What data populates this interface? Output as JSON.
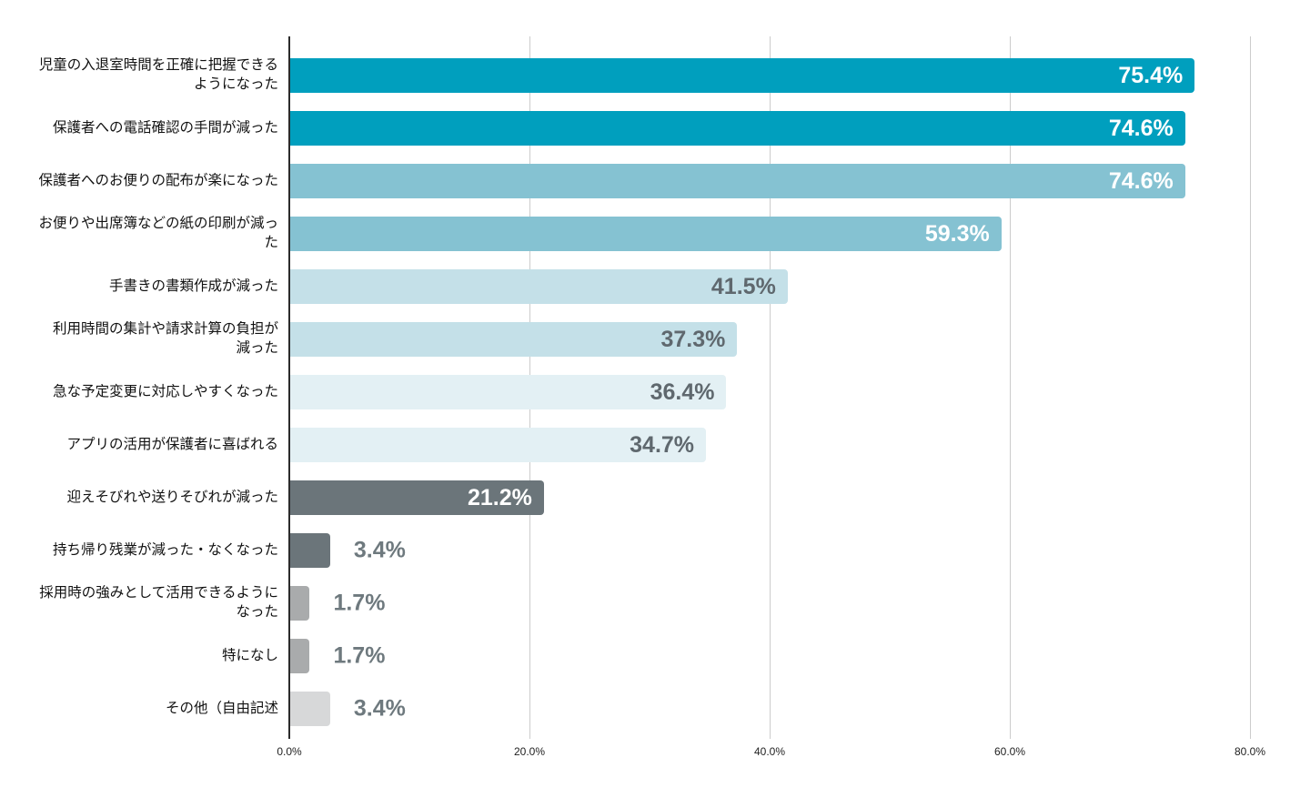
{
  "colors": {
    "teal_dark": "#009fbe",
    "teal_mid": "#85c2d2",
    "blue_light": "#c4e0e8",
    "blue_lighter": "#e3f0f4",
    "gray_dark": "#6b757a",
    "gray_mid": "#a9abac",
    "gray_light": "#d7d8d9",
    "value_label_white": "#ffffff",
    "value_label_dark": "#5f686e",
    "value_label_gray": "#6e797e",
    "gridline": "#cccccc",
    "axis_line": "#2b2b2b",
    "tick_text": "#222222",
    "category_text": "#111111"
  },
  "chart_data": {
    "type": "bar",
    "orientation": "horizontal",
    "title": "",
    "xlabel": "",
    "ylabel": "",
    "xlim": [
      0,
      80
    ],
    "grid": "vertical gridlines every 20%",
    "legend": "none",
    "x_ticks": [
      {
        "value": 0,
        "label": "0.0%"
      },
      {
        "value": 20,
        "label": "20.0%"
      },
      {
        "value": 40,
        "label": "40.0%"
      },
      {
        "value": 60,
        "label": "60.0%"
      },
      {
        "value": 80,
        "label": "80.0%"
      }
    ],
    "categories": [
      "児童の入退室時間を正確に把握できる\nようになった",
      "保護者への電話確認の手間が減った",
      "保護者へのお便りの配布が楽になった",
      "お便りや出席簿などの紙の印刷が減っ\nた",
      "手書きの書類作成が減った",
      "利用時間の集計や請求計算の負担が\n減った",
      "急な予定変更に対応しやすくなった",
      "アプリの活用が保護者に喜ばれる",
      "迎えそびれや送りそびれが減った",
      "持ち帰り残業が減った・なくなった",
      "採用時の強みとして活用できるように\nなった",
      "特になし",
      "その他（自由記述"
    ],
    "values": [
      75.4,
      74.6,
      74.6,
      59.3,
      41.5,
      37.3,
      36.4,
      34.7,
      21.2,
      3.4,
      1.7,
      1.7,
      3.4
    ],
    "rows": [
      {
        "label": "児童の入退室時間を正確に把握できる\nようになった",
        "value": 75.4,
        "value_label": "75.4%",
        "color": "#009fbe",
        "label_placement": "inside",
        "label_color": "#ffffff"
      },
      {
        "label": "保護者への電話確認の手間が減った",
        "value": 74.6,
        "value_label": "74.6%",
        "color": "#009fbe",
        "label_placement": "inside",
        "label_color": "#ffffff"
      },
      {
        "label": "保護者へのお便りの配布が楽になった",
        "value": 74.6,
        "value_label": "74.6%",
        "color": "#85c2d2",
        "label_placement": "inside",
        "label_color": "#ffffff"
      },
      {
        "label": "お便りや出席簿などの紙の印刷が減っ\nた",
        "value": 59.3,
        "value_label": "59.3%",
        "color": "#85c2d2",
        "label_placement": "inside",
        "label_color": "#ffffff"
      },
      {
        "label": "手書きの書類作成が減った",
        "value": 41.5,
        "value_label": "41.5%",
        "color": "#c4e0e8",
        "label_placement": "inside",
        "label_color": "#5f686e"
      },
      {
        "label": "利用時間の集計や請求計算の負担が\n減った",
        "value": 37.3,
        "value_label": "37.3%",
        "color": "#c4e0e8",
        "label_placement": "inside",
        "label_color": "#5f686e"
      },
      {
        "label": "急な予定変更に対応しやすくなった",
        "value": 36.4,
        "value_label": "36.4%",
        "color": "#e3f0f4",
        "label_placement": "inside",
        "label_color": "#5f686e"
      },
      {
        "label": "アプリの活用が保護者に喜ばれる",
        "value": 34.7,
        "value_label": "34.7%",
        "color": "#e3f0f4",
        "label_placement": "inside",
        "label_color": "#5f686e"
      },
      {
        "label": "迎えそびれや送りそびれが減った",
        "value": 21.2,
        "value_label": "21.2%",
        "color": "#6b757a",
        "label_placement": "inside",
        "label_color": "#ffffff"
      },
      {
        "label": "持ち帰り残業が減った・なくなった",
        "value": 3.4,
        "value_label": "3.4%",
        "color": "#6b757a",
        "label_placement": "outside",
        "label_color": "#6e797e"
      },
      {
        "label": "採用時の強みとして活用できるように\nなった",
        "value": 1.7,
        "value_label": "1.7%",
        "color": "#a9abac",
        "label_placement": "outside",
        "label_color": "#6e797e"
      },
      {
        "label": "特になし",
        "value": 1.7,
        "value_label": "1.7%",
        "color": "#a9abac",
        "label_placement": "outside",
        "label_color": "#6e797e"
      },
      {
        "label": "その他（自由記述",
        "value": 3.4,
        "value_label": "3.4%",
        "color": "#d7d8d9",
        "label_placement": "outside",
        "label_color": "#6e797e"
      }
    ]
  }
}
